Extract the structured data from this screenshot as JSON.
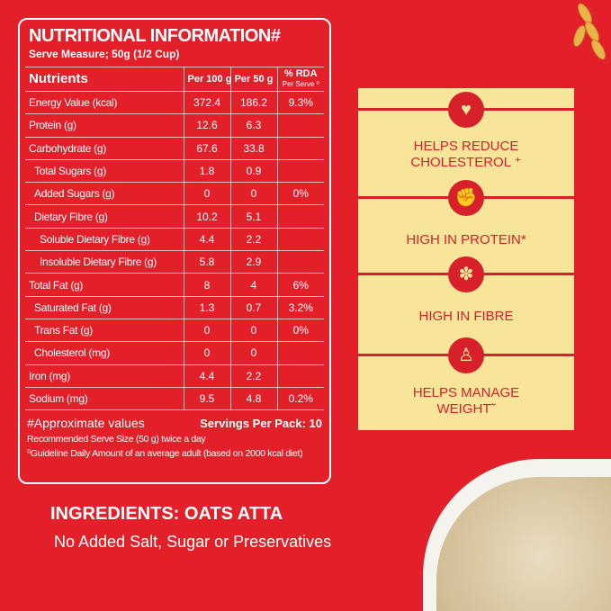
{
  "nutrition": {
    "title": "NUTRITIONAL INFORMATION#",
    "serve_measure": "Serve Measure; 50g (1/2 Cup)",
    "headers": {
      "nutrients": "Nutrients",
      "per100": "Per 100 g",
      "per50": "Per 50 g",
      "rda": "% RDA",
      "rda_sub": "Per Serve ⁰"
    },
    "rows": [
      {
        "name": "Energy Value (kcal)",
        "per100": "372.4",
        "per50": "186.2",
        "rda": "9.3%"
      },
      {
        "name": "Protein (g)",
        "per100": "12.6",
        "per50": "6.3",
        "rda": ""
      },
      {
        "name": "Carbohydrate (g)",
        "per100": "67.6",
        "per50": "33.8",
        "rda": ""
      },
      {
        "name": "Total Sugars (g)",
        "per100": "1.8",
        "per50": "0.9",
        "rda": ""
      },
      {
        "name": "Added Sugars (g)",
        "per100": "0",
        "per50": "0",
        "rda": "0%"
      },
      {
        "name": "Dietary Fibre (g)",
        "per100": "10.2",
        "per50": "5.1",
        "rda": ""
      },
      {
        "name": "Soluble Dietary Fibre (g)",
        "per100": "4.4",
        "per50": "2.2",
        "rda": ""
      },
      {
        "name": "Insoluble Dietary Fibre (g)",
        "per100": "5.8",
        "per50": "2.9",
        "rda": ""
      },
      {
        "name": "Total Fat (g)",
        "per100": "8",
        "per50": "4",
        "rda": "6%"
      },
      {
        "name": "Saturated Fat (g)",
        "per100": "1.3",
        "per50": "0.7",
        "rda": "3.2%"
      },
      {
        "name": "Trans Fat (g)",
        "per100": "0",
        "per50": "0",
        "rda": "0%"
      },
      {
        "name": "Cholesterol (mg)",
        "per100": "0",
        "per50": "0",
        "rda": ""
      },
      {
        "name": "Iron (mg)",
        "per100": "4.4",
        "per50": "2.2",
        "rda": ""
      },
      {
        "name": "Sodium (mg)",
        "per100": "9.5",
        "per50": "4.8",
        "rda": "0.2%"
      }
    ],
    "approx": "#Approximate values",
    "servings": "Servings Per Pack: 10",
    "recommended": "Recommended Serve Size (50 g) twice a day",
    "guideline": "⁰Guideline Daily Amount of an average adult (based on 2000 kcal diet)"
  },
  "ingredients": {
    "title": "INGREDIENTS: OATS ATTA",
    "subtitle": "No Added Salt, Sugar or Preservatives"
  },
  "benefits": [
    {
      "icon": "heart-hand-icon",
      "label": "HELPS REDUCE CHOLESTEROL ⁺"
    },
    {
      "icon": "muscle-arm-icon",
      "label": "HIGH IN PROTEIN*"
    },
    {
      "icon": "wheat-icon",
      "label": "HIGH IN FIBRE"
    },
    {
      "icon": "weighing-scale-icon",
      "label": "HELPS MANAGE WEIGHT˜"
    }
  ],
  "colors": {
    "background": "#e3202a",
    "panel": "#f8e59a"
  }
}
